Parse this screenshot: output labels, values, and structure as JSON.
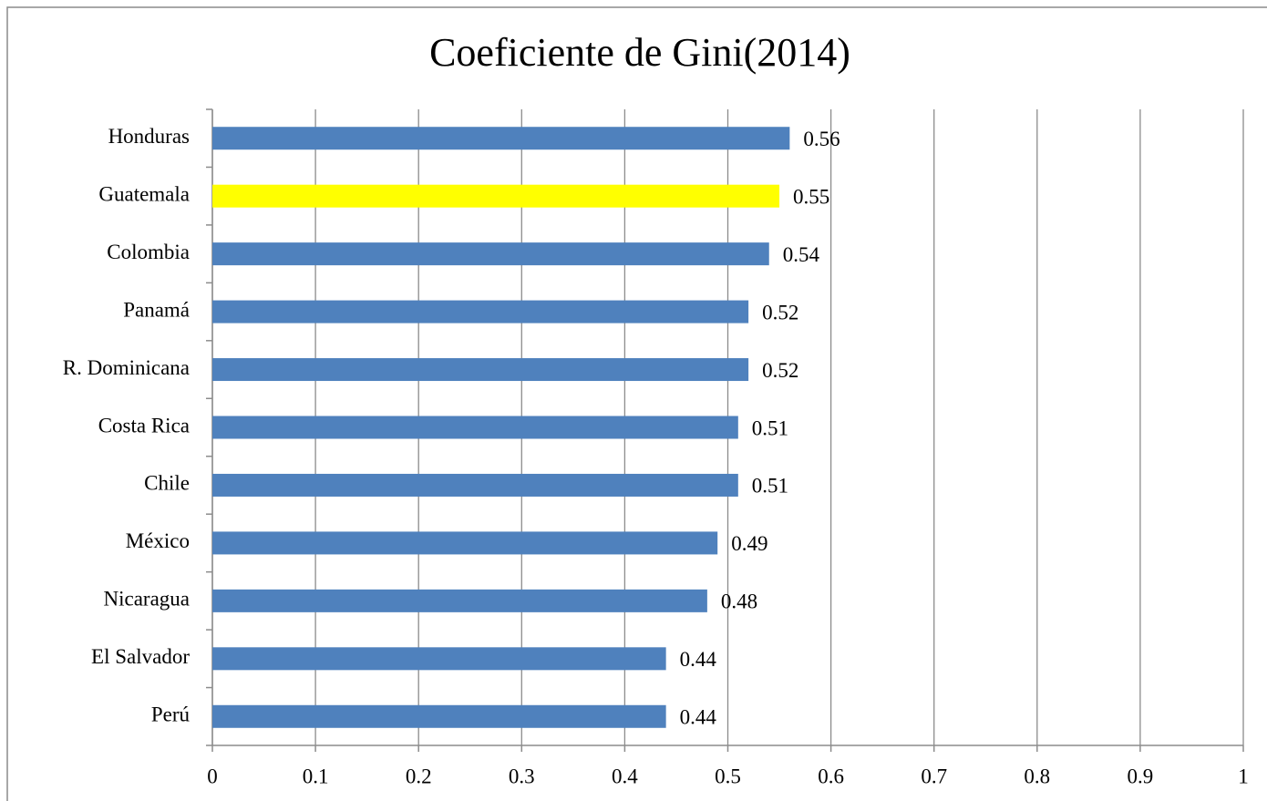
{
  "chart_data": {
    "type": "hbar",
    "title": "Coeficiente de Gini(2014)",
    "categories": [
      "Honduras",
      "Guatemala",
      "Colombia",
      "Panamá",
      "R. Dominicana",
      "Costa Rica",
      "Chile",
      "México",
      "Nicaragua",
      "El Salvador",
      "Perú"
    ],
    "values": [
      0.56,
      0.55,
      0.54,
      0.52,
      0.52,
      0.51,
      0.51,
      0.49,
      0.48,
      0.44,
      0.44
    ],
    "colors": [
      "#4f81bd",
      "#ffff00",
      "#4f81bd",
      "#4f81bd",
      "#4f81bd",
      "#4f81bd",
      "#4f81bd",
      "#4f81bd",
      "#4f81bd",
      "#4f81bd",
      "#4f81bd"
    ],
    "xlim": [
      0,
      1
    ],
    "xticks": [
      0,
      0.1,
      0.2,
      0.3,
      0.4,
      0.5,
      0.6,
      0.7,
      0.8,
      0.9,
      1
    ],
    "grid": true
  }
}
